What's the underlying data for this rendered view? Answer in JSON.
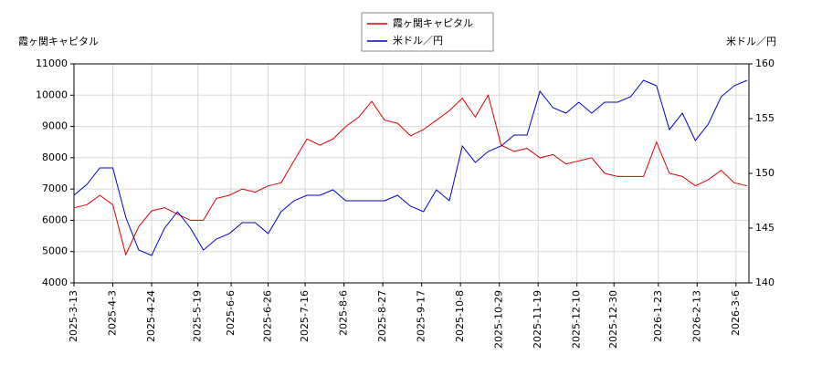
{
  "chart_data": {
    "type": "line",
    "y_label": "霞ヶ関キャピタル",
    "y2_label": "米ドル／円",
    "x": [
      "2025-3-13",
      "2025-3-20",
      "2025-3-27",
      "2025-4-3",
      "2025-4-10",
      "2025-4-17",
      "2025-4-24",
      "2025-5-1",
      "2025-5-8",
      "2025-5-15",
      "2025-5-22",
      "2025-5-29",
      "2025-6-5",
      "2025-6-12",
      "2025-6-19",
      "2025-6-26",
      "2025-7-3",
      "2025-7-10",
      "2025-7-17",
      "2025-7-24",
      "2025-7-31",
      "2025-8-7",
      "2025-8-14",
      "2025-8-21",
      "2025-8-28",
      "2025-9-4",
      "2025-9-11",
      "2025-9-18",
      "2025-9-25",
      "2025-10-2",
      "2025-10-9",
      "2025-10-16",
      "2025-10-23",
      "2025-10-30",
      "2025-11-6",
      "2025-11-13",
      "2025-11-20",
      "2025-11-27",
      "2025-12-4",
      "2025-12-11",
      "2025-12-18",
      "2025-12-25",
      "2026-1-1",
      "2026-1-8",
      "2026-1-15",
      "2026-1-22",
      "2026-1-29",
      "2026-2-5",
      "2026-2-12",
      "2026-2-19",
      "2026-2-26",
      "2026-3-5",
      "2026-3-12"
    ],
    "series": [
      {
        "name": "霞ヶ関キャピタル",
        "color": "#dd0000",
        "axis": "y",
        "values": [
          6400,
          6500,
          6800,
          6500,
          4900,
          5800,
          6300,
          6400,
          6200,
          6000,
          6000,
          6700,
          6800,
          7000,
          6900,
          7100,
          7200,
          7900,
          8600,
          8400,
          8600,
          9000,
          9300,
          9800,
          9200,
          9100,
          8700,
          8900,
          9200,
          9500,
          9900,
          9300,
          10000,
          8400,
          8200,
          8300,
          8000,
          8100,
          7800,
          7900,
          8000,
          7500,
          7400,
          7400,
          7400,
          8500,
          7500,
          7400,
          7100,
          7300,
          7600,
          7200,
          7100
        ]
      },
      {
        "name": "米ドル／円",
        "color": "#0000cc",
        "axis": "y2",
        "values": [
          148,
          149,
          150.5,
          150.5,
          146,
          143,
          142.5,
          145,
          146.5,
          145,
          143,
          144,
          144.5,
          145.5,
          145.5,
          144.5,
          146.5,
          147.5,
          148,
          148,
          148.5,
          147.5,
          147.5,
          147.5,
          147.5,
          148,
          147,
          146.5,
          148.5,
          147.5,
          152.5,
          151,
          152,
          152.5,
          153.5,
          153.5,
          157.5,
          156,
          155.5,
          156.5,
          155.5,
          156.5,
          156.5,
          157,
          158.5,
          158,
          154,
          155.5,
          153,
          154.5,
          157,
          158,
          158.5
        ]
      }
    ],
    "xlim": [
      "2025-3-13",
      "2026-3-13"
    ],
    "xticks": [
      "2025-3-13",
      "2025-4-3",
      "2025-4-24",
      "2025-5-19",
      "2025-6-6",
      "2025-6-26",
      "2025-7-16",
      "2025-8-6",
      "2025-8-27",
      "2025-9-17",
      "2025-10-8",
      "2025-10-29",
      "2025-11-19",
      "2025-12-10",
      "2025-12-30",
      "2026-1-23",
      "2026-2-13",
      "2026-3-6"
    ],
    "ylim": [
      4000,
      11000
    ],
    "yticks": [
      4000,
      5000,
      6000,
      7000,
      8000,
      9000,
      10000,
      11000
    ],
    "y2lim": [
      140,
      160
    ],
    "y2ticks": [
      140,
      145,
      150,
      155,
      160
    ],
    "grid": true
  }
}
